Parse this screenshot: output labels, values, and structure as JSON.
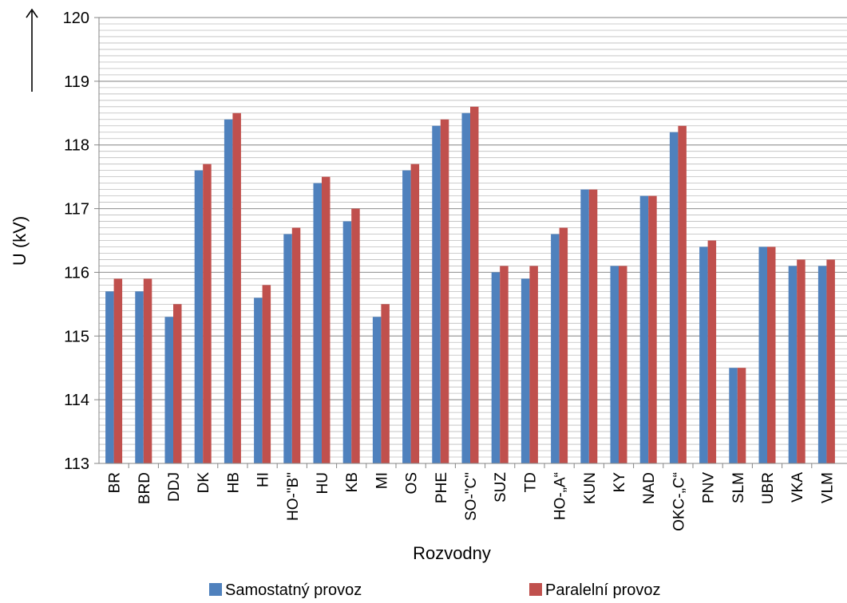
{
  "chart_data": {
    "type": "bar",
    "title": "",
    "xlabel": "Rozvodny",
    "ylabel": "U (kV)",
    "ylim": [
      113,
      120
    ],
    "y_ticks": [
      113,
      114,
      115,
      116,
      117,
      118,
      119,
      120
    ],
    "grid": true,
    "legend_position": "bottom",
    "categories": [
      "BR",
      "BRD",
      "DDJ",
      "DK",
      "HB",
      "HI",
      "HO-\"B\"",
      "HU",
      "KB",
      "MI",
      "OS",
      "PHE",
      "SO-\"C\"",
      "SUZ",
      "TD",
      "HO-„A“",
      "KUN",
      "KY",
      "NAD",
      "OKC-„C“",
      "PNV",
      "SLM",
      "UBR",
      "VKA",
      "VLM"
    ],
    "series": [
      {
        "name": "Samostatný provoz",
        "color": "#4f81bd",
        "values": [
          115.7,
          115.7,
          115.3,
          117.6,
          118.4,
          115.6,
          116.6,
          117.4,
          116.8,
          115.3,
          117.6,
          118.3,
          118.5,
          116.0,
          115.9,
          116.6,
          117.3,
          116.1,
          117.2,
          118.2,
          116.4,
          114.5,
          116.4,
          116.1,
          116.1
        ]
      },
      {
        "name": "Paralelní provoz",
        "color": "#c0504d",
        "values": [
          115.9,
          115.9,
          115.5,
          117.7,
          118.5,
          115.8,
          116.7,
          117.5,
          117.0,
          115.5,
          117.7,
          118.4,
          118.6,
          116.1,
          116.1,
          116.7,
          117.3,
          116.1,
          117.2,
          118.3,
          116.5,
          114.5,
          116.4,
          116.2,
          116.2
        ]
      }
    ]
  }
}
